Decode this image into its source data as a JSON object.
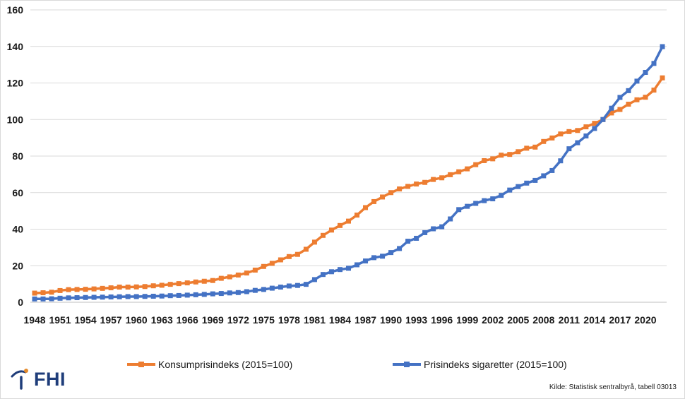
{
  "chart_data": {
    "type": "line",
    "title": "",
    "xlabel": "",
    "ylabel": "",
    "ylim": [
      0,
      160
    ],
    "yticks": [
      0,
      20,
      40,
      60,
      80,
      100,
      120,
      140,
      160
    ],
    "xtick_labels": [
      "1948",
      "1951",
      "1954",
      "1957",
      "1960",
      "1963",
      "1966",
      "1969",
      "1972",
      "1975",
      "1978",
      "1981",
      "1984",
      "1987",
      "1990",
      "1993",
      "1996",
      "1999",
      "2002",
      "2005",
      "2008",
      "2011",
      "2014",
      "2017",
      "2020"
    ],
    "grid": true,
    "legend_position": "bottom",
    "x": [
      1948,
      1949,
      1950,
      1951,
      1952,
      1953,
      1954,
      1955,
      1956,
      1957,
      1958,
      1959,
      1960,
      1961,
      1962,
      1963,
      1964,
      1965,
      1966,
      1967,
      1968,
      1969,
      1970,
      1971,
      1972,
      1973,
      1974,
      1975,
      1976,
      1977,
      1978,
      1979,
      1980,
      1981,
      1982,
      1983,
      1984,
      1985,
      1986,
      1987,
      1988,
      1989,
      1990,
      1991,
      1992,
      1993,
      1994,
      1995,
      1996,
      1997,
      1998,
      1999,
      2000,
      2001,
      2002,
      2003,
      2004,
      2005,
      2006,
      2007,
      2008,
      2009,
      2010,
      2011,
      2012,
      2013,
      2014,
      2015,
      2016,
      2017,
      2018,
      2019,
      2020,
      2021,
      2022
    ],
    "series": [
      {
        "name": "Konsumprisindeks (2015=100)",
        "color": "#ed7d31",
        "values": [
          5.0,
          5.2,
          5.5,
          6.4,
          6.9,
          7.0,
          7.1,
          7.3,
          7.6,
          7.9,
          8.3,
          8.3,
          8.4,
          8.6,
          9.0,
          9.3,
          9.8,
          10.2,
          10.6,
          11.1,
          11.5,
          11.9,
          13.1,
          13.9,
          14.9,
          16.0,
          17.6,
          19.6,
          21.3,
          23.2,
          25.0,
          26.2,
          29.0,
          32.9,
          36.6,
          39.5,
          42.0,
          44.4,
          47.7,
          51.8,
          55.1,
          57.6,
          60.0,
          62.0,
          63.4,
          64.7,
          65.6,
          67.2,
          68.1,
          69.8,
          71.4,
          73.0,
          75.3,
          77.5,
          78.5,
          80.5,
          80.9,
          82.4,
          84.3,
          84.9,
          88.0,
          89.9,
          92.1,
          93.4,
          94.0,
          96.0,
          97.9,
          100.0,
          103.6,
          105.5,
          108.4,
          110.8,
          112.2,
          116.1,
          122.8
        ]
      },
      {
        "name": "Prisindeks sigaretter (2015=100)",
        "color": "#4472c4",
        "values": [
          1.8,
          1.8,
          1.9,
          2.2,
          2.4,
          2.5,
          2.6,
          2.7,
          2.8,
          2.9,
          3.0,
          3.1,
          3.1,
          3.2,
          3.3,
          3.4,
          3.6,
          3.7,
          3.9,
          4.1,
          4.3,
          4.6,
          4.8,
          5.1,
          5.3,
          5.8,
          6.5,
          7.0,
          7.7,
          8.3,
          8.9,
          9.2,
          9.8,
          12.4,
          15.2,
          16.7,
          17.9,
          18.6,
          20.5,
          22.6,
          24.4,
          25.2,
          27.2,
          29.4,
          33.4,
          35.0,
          38.1,
          40.2,
          41.3,
          45.6,
          50.7,
          52.5,
          54.1,
          55.6,
          56.6,
          58.5,
          61.4,
          63.3,
          65.2,
          66.7,
          69.2,
          72.1,
          77.4,
          84.0,
          87.3,
          91.0,
          95.1,
          100.0,
          106.2,
          112.1,
          115.8,
          121.0,
          125.8,
          130.7,
          139.9
        ]
      }
    ]
  },
  "legend": {
    "items": [
      {
        "label": "Konsumprisindeks (2015=100)",
        "color": "#ed7d31"
      },
      {
        "label": "Prisindeks sigaretter (2015=100)",
        "color": "#4472c4"
      }
    ]
  },
  "logo": {
    "text": "FHI"
  },
  "source": "Kilde: Statistisk sentralbyrå, tabell 03013"
}
